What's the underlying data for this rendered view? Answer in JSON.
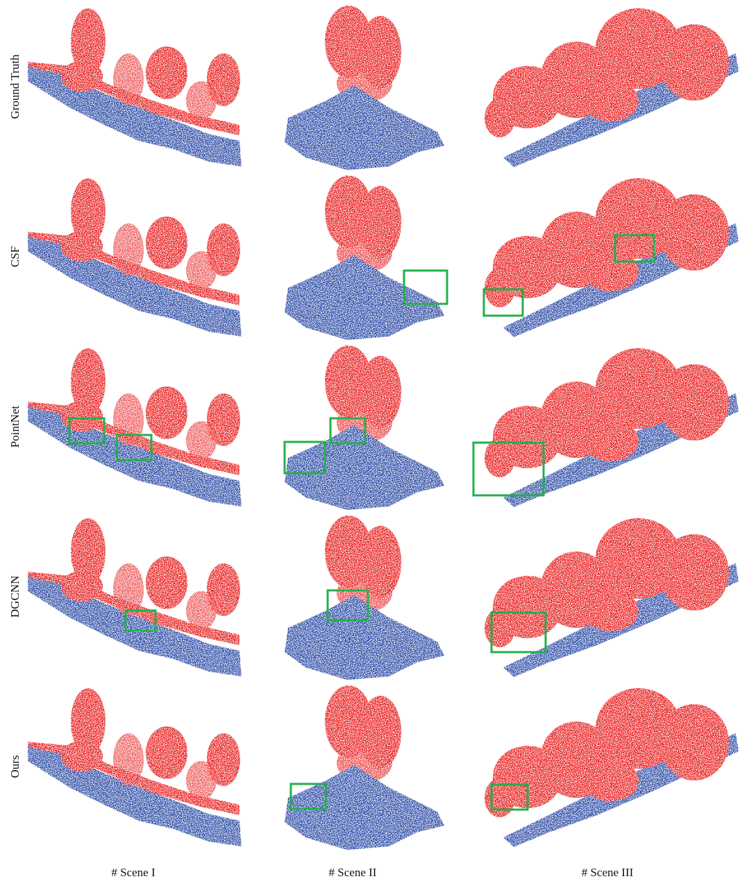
{
  "row_labels": [
    "Ground Truth",
    "CSF",
    "PointNet",
    "DGCNN",
    "Ours"
  ],
  "column_labels": [
    "# Scene I",
    "# Scene II",
    "# Scene III"
  ]
}
